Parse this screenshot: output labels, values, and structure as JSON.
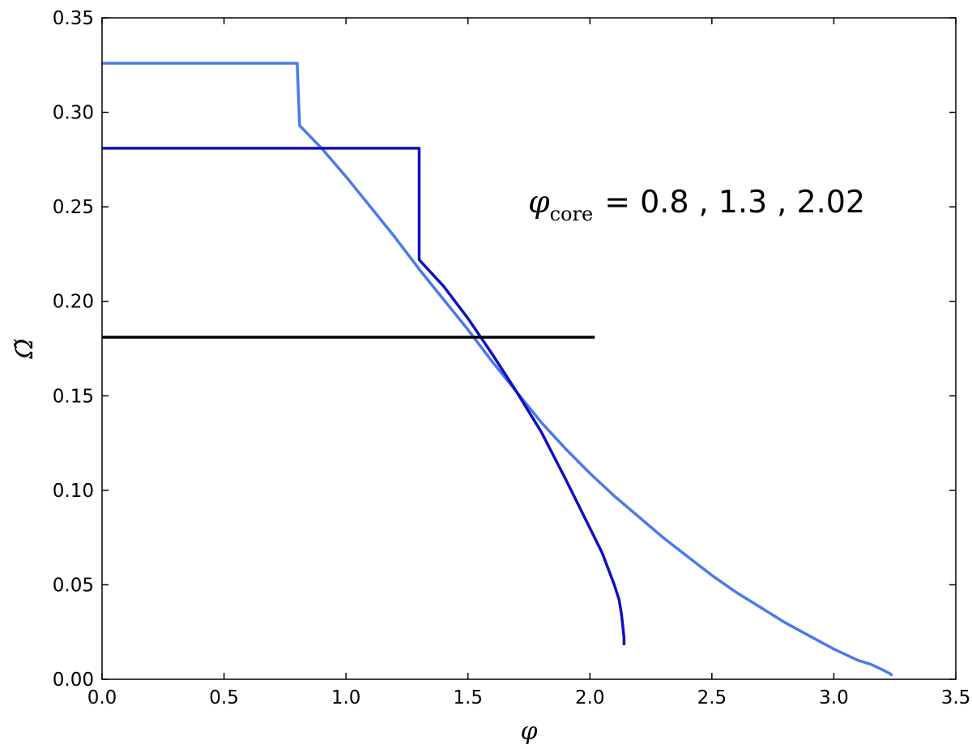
{
  "chart_data": {
    "type": "line",
    "title": "",
    "xlabel": "φ",
    "ylabel": "Ω̃",
    "xlim": [
      0.0,
      3.5
    ],
    "ylim": [
      0.0,
      0.35
    ],
    "xticks": [
      "0.0",
      "0.5",
      "1.0",
      "1.5",
      "2.0",
      "2.5",
      "3.0",
      "3.5"
    ],
    "yticks": [
      "0.00",
      "0.05",
      "0.10",
      "0.15",
      "0.20",
      "0.25",
      "0.30",
      "0.35"
    ],
    "grid": false,
    "legend": "none",
    "annotation": {
      "symbol": "φ",
      "subscript": "core",
      "text": "= 0.8 , 1.3 , 2.02"
    },
    "series": [
      {
        "color": "#4a7ae8",
        "x": [
          0.0,
          0.8,
          0.81,
          0.9,
          1.0,
          1.1,
          1.2,
          1.3,
          1.4,
          1.5,
          1.6,
          1.7,
          1.8,
          1.9,
          2.0,
          2.1,
          2.2,
          2.3,
          2.4,
          2.5,
          2.6,
          2.7,
          2.8,
          2.9,
          3.0,
          3.1,
          3.15,
          3.2,
          3.23,
          3.24
        ],
        "y": [
          0.326,
          0.326,
          0.293,
          0.281,
          0.266,
          0.25,
          0.234,
          0.217,
          0.201,
          0.185,
          0.168,
          0.152,
          0.136,
          0.122,
          0.109,
          0.097,
          0.086,
          0.075,
          0.065,
          0.055,
          0.046,
          0.038,
          0.03,
          0.023,
          0.016,
          0.01,
          0.008,
          0.005,
          0.003,
          0.002
        ]
      },
      {
        "color": "#1010c0",
        "x": [
          0.0,
          1.3,
          1.3,
          1.4,
          1.5,
          1.6,
          1.7,
          1.8,
          1.9,
          2.0,
          2.05,
          2.1,
          2.12,
          2.13,
          2.135,
          2.14,
          2.14
        ],
        "y": [
          0.281,
          0.281,
          0.222,
          0.208,
          0.191,
          0.172,
          0.152,
          0.131,
          0.106,
          0.08,
          0.067,
          0.05,
          0.042,
          0.034,
          0.028,
          0.022,
          0.018
        ]
      },
      {
        "color": "#000000",
        "x": [
          0.0,
          2.02
        ],
        "y": [
          0.181,
          0.181
        ]
      }
    ]
  }
}
